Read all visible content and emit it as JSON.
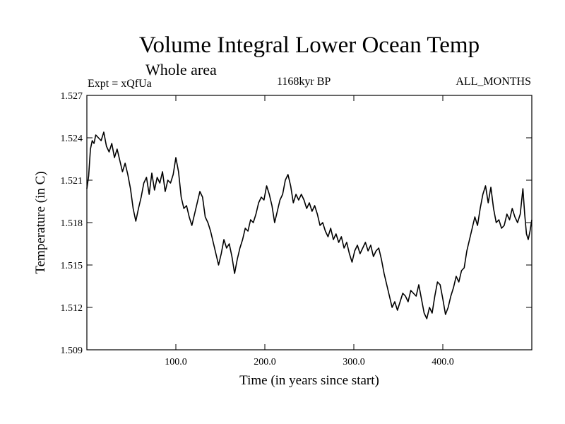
{
  "chart_data": {
    "type": "line",
    "title": "Volume Integral Lower Ocean Temp",
    "subtitle": "Whole area",
    "left_label": "Expt = xQfUa",
    "center_label": "1168kyr BP",
    "right_label": "ALL_MONTHS",
    "xlabel": "Time (in years since start)",
    "ylabel": "Temperature (in C)",
    "xlim": [
      0,
      500
    ],
    "ylim": [
      1.509,
      1.527
    ],
    "x_ticks": [
      100,
      200,
      300,
      400
    ],
    "x_tick_labels": [
      "100.0",
      "200.0",
      "300.0",
      "400.0"
    ],
    "y_ticks": [
      1.509,
      1.512,
      1.515,
      1.518,
      1.521,
      1.524,
      1.527
    ],
    "y_tick_labels": [
      "1.509",
      "1.512",
      "1.515",
      "1.518",
      "1.521",
      "1.524",
      "1.527"
    ],
    "grid": false,
    "series": [
      {
        "name": "Volume Integral Lower Ocean Temp",
        "color": "#000000",
        "points": [
          [
            0,
            1.5204
          ],
          [
            2,
            1.5213
          ],
          [
            4,
            1.5232
          ],
          [
            6,
            1.5238
          ],
          [
            8,
            1.5236
          ],
          [
            10,
            1.5242
          ],
          [
            13,
            1.524
          ],
          [
            16,
            1.5238
          ],
          [
            19,
            1.5244
          ],
          [
            22,
            1.5234
          ],
          [
            25,
            1.523
          ],
          [
            28,
            1.5236
          ],
          [
            31,
            1.5226
          ],
          [
            34,
            1.5232
          ],
          [
            37,
            1.5224
          ],
          [
            40,
            1.5216
          ],
          [
            43,
            1.5222
          ],
          [
            46,
            1.5214
          ],
          [
            49,
            1.5204
          ],
          [
            52,
            1.519
          ],
          [
            55,
            1.5181
          ],
          [
            58,
            1.519
          ],
          [
            61,
            1.5198
          ],
          [
            64,
            1.5208
          ],
          [
            67,
            1.5212
          ],
          [
            70,
            1.52
          ],
          [
            73,
            1.5215
          ],
          [
            76,
            1.5203
          ],
          [
            79,
            1.5212
          ],
          [
            82,
            1.5208
          ],
          [
            85,
            1.5216
          ],
          [
            88,
            1.5202
          ],
          [
            91,
            1.521
          ],
          [
            94,
            1.5208
          ],
          [
            97,
            1.5214
          ],
          [
            100,
            1.5226
          ],
          [
            103,
            1.5216
          ],
          [
            106,
            1.5198
          ],
          [
            109,
            1.519
          ],
          [
            112,
            1.5192
          ],
          [
            115,
            1.5184
          ],
          [
            118,
            1.5178
          ],
          [
            121,
            1.5186
          ],
          [
            124,
            1.5194
          ],
          [
            127,
            1.5202
          ],
          [
            130,
            1.5198
          ],
          [
            133,
            1.5184
          ],
          [
            136,
            1.518
          ],
          [
            139,
            1.5174
          ],
          [
            142,
            1.5166
          ],
          [
            145,
            1.5158
          ],
          [
            148,
            1.515
          ],
          [
            151,
            1.5158
          ],
          [
            154,
            1.5168
          ],
          [
            157,
            1.5162
          ],
          [
            160,
            1.5165
          ],
          [
            163,
            1.5156
          ],
          [
            166,
            1.5144
          ],
          [
            169,
            1.5154
          ],
          [
            172,
            1.5162
          ],
          [
            175,
            1.5168
          ],
          [
            178,
            1.5176
          ],
          [
            181,
            1.5174
          ],
          [
            184,
            1.5182
          ],
          [
            187,
            1.518
          ],
          [
            190,
            1.5186
          ],
          [
            193,
            1.5194
          ],
          [
            196,
            1.5198
          ],
          [
            199,
            1.5196
          ],
          [
            202,
            1.5206
          ],
          [
            205,
            1.52
          ],
          [
            208,
            1.5192
          ],
          [
            211,
            1.518
          ],
          [
            214,
            1.5188
          ],
          [
            217,
            1.5196
          ],
          [
            220,
            1.52
          ],
          [
            223,
            1.521
          ],
          [
            226,
            1.5214
          ],
          [
            229,
            1.5206
          ],
          [
            232,
            1.5194
          ],
          [
            235,
            1.52
          ],
          [
            238,
            1.5196
          ],
          [
            241,
            1.52
          ],
          [
            244,
            1.5196
          ],
          [
            247,
            1.519
          ],
          [
            250,
            1.5194
          ],
          [
            253,
            1.5188
          ],
          [
            256,
            1.5192
          ],
          [
            259,
            1.5186
          ],
          [
            262,
            1.5178
          ],
          [
            265,
            1.518
          ],
          [
            268,
            1.5174
          ],
          [
            271,
            1.517
          ],
          [
            274,
            1.5176
          ],
          [
            277,
            1.5168
          ],
          [
            280,
            1.5172
          ],
          [
            283,
            1.5166
          ],
          [
            286,
            1.517
          ],
          [
            289,
            1.5162
          ],
          [
            292,
            1.5166
          ],
          [
            295,
            1.5158
          ],
          [
            298,
            1.5152
          ],
          [
            301,
            1.516
          ],
          [
            304,
            1.5164
          ],
          [
            307,
            1.5158
          ],
          [
            310,
            1.5162
          ],
          [
            313,
            1.5166
          ],
          [
            316,
            1.516
          ],
          [
            319,
            1.5164
          ],
          [
            322,
            1.5156
          ],
          [
            325,
            1.516
          ],
          [
            328,
            1.5162
          ],
          [
            331,
            1.5154
          ],
          [
            334,
            1.5144
          ],
          [
            337,
            1.5136
          ],
          [
            340,
            1.5128
          ],
          [
            343,
            1.512
          ],
          [
            346,
            1.5124
          ],
          [
            349,
            1.5118
          ],
          [
            352,
            1.5124
          ],
          [
            355,
            1.513
          ],
          [
            358,
            1.5128
          ],
          [
            361,
            1.5124
          ],
          [
            364,
            1.5132
          ],
          [
            367,
            1.513
          ],
          [
            370,
            1.5128
          ],
          [
            373,
            1.5136
          ],
          [
            376,
            1.5126
          ],
          [
            379,
            1.5116
          ],
          [
            382,
            1.5112
          ],
          [
            385,
            1.512
          ],
          [
            388,
            1.5116
          ],
          [
            391,
            1.5128
          ],
          [
            394,
            1.5138
          ],
          [
            397,
            1.5136
          ],
          [
            400,
            1.5126
          ],
          [
            403,
            1.5115
          ],
          [
            406,
            1.512
          ],
          [
            409,
            1.5128
          ],
          [
            412,
            1.5134
          ],
          [
            415,
            1.5142
          ],
          [
            418,
            1.5138
          ],
          [
            421,
            1.5146
          ],
          [
            424,
            1.5148
          ],
          [
            427,
            1.516
          ],
          [
            430,
            1.5168
          ],
          [
            433,
            1.5176
          ],
          [
            436,
            1.5184
          ],
          [
            439,
            1.5178
          ],
          [
            442,
            1.519
          ],
          [
            445,
            1.52
          ],
          [
            448,
            1.5206
          ],
          [
            451,
            1.5194
          ],
          [
            454,
            1.5205
          ],
          [
            457,
            1.519
          ],
          [
            460,
            1.518
          ],
          [
            463,
            1.5182
          ],
          [
            466,
            1.5176
          ],
          [
            469,
            1.5178
          ],
          [
            472,
            1.5186
          ],
          [
            475,
            1.5182
          ],
          [
            478,
            1.519
          ],
          [
            481,
            1.5184
          ],
          [
            484,
            1.518
          ],
          [
            487,
            1.5186
          ],
          [
            490,
            1.5204
          ],
          [
            492,
            1.5186
          ],
          [
            494,
            1.5172
          ],
          [
            496,
            1.5168
          ],
          [
            498,
            1.5174
          ],
          [
            500,
            1.5182
          ]
        ]
      }
    ]
  }
}
